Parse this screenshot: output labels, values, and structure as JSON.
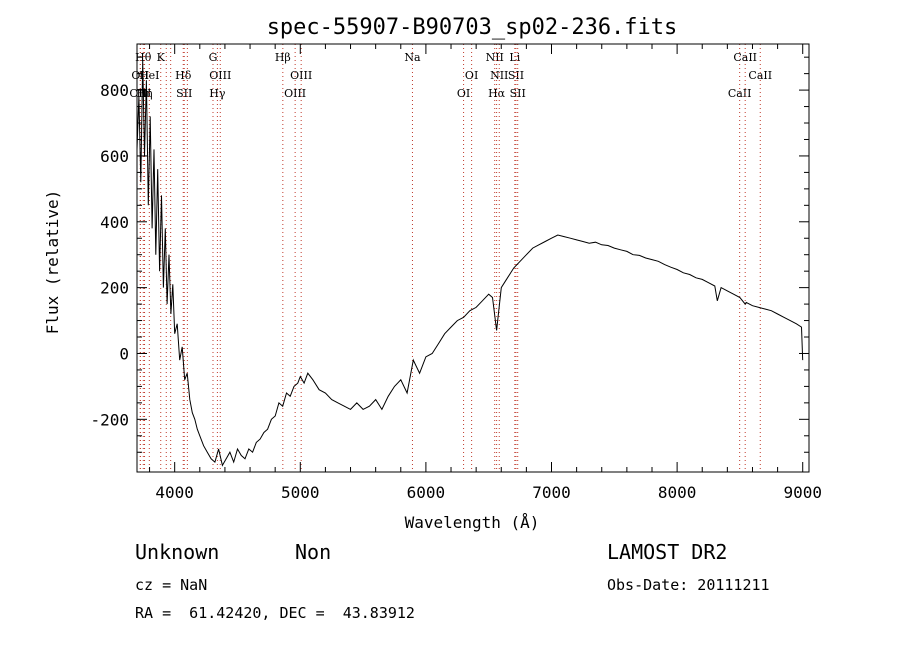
{
  "chart_data": {
    "type": "line",
    "title": "spec-55907-B90703_sp02-236.fits",
    "xlabel": "Wavelength (Å)",
    "ylabel": "Flux (relative)",
    "xlim": [
      3700,
      9050
    ],
    "ylim": [
      -360,
      940
    ],
    "xticks": [
      4000,
      5000,
      6000,
      7000,
      8000,
      9000
    ],
    "yticks": [
      -200,
      0,
      200,
      400,
      600,
      800
    ],
    "grid": false,
    "series": [
      {
        "x": [
          3700,
          3715,
          3730,
          3745,
          3760,
          3775,
          3790,
          3805,
          3820,
          3835,
          3850,
          3865,
          3880,
          3895,
          3910,
          3925,
          3940,
          3955,
          3970,
          3985,
          4000,
          4020,
          4040,
          4060,
          4080,
          4100,
          4120,
          4140,
          4160,
          4180,
          4200,
          4230,
          4260,
          4290,
          4320,
          4350,
          4380,
          4410,
          4440,
          4470,
          4500,
          4530,
          4560,
          4590,
          4620,
          4650,
          4680,
          4710,
          4740,
          4770,
          4800,
          4830,
          4860,
          4890,
          4920,
          4950,
          4980,
          5000,
          5030,
          5060,
          5100,
          5150,
          5200,
          5250,
          5300,
          5350,
          5400,
          5450,
          5500,
          5550,
          5600,
          5650,
          5700,
          5750,
          5800,
          5850,
          5900,
          5950,
          6000,
          6050,
          6100,
          6150,
          6200,
          6250,
          6300,
          6350,
          6400,
          6450,
          6500,
          6530,
          6563,
          6600,
          6650,
          6700,
          6750,
          6800,
          6850,
          6900,
          6950,
          7000,
          7050,
          7100,
          7150,
          7200,
          7250,
          7300,
          7350,
          7400,
          7450,
          7500,
          7550,
          7600,
          7650,
          7700,
          7750,
          7800,
          7850,
          7900,
          7950,
          8000,
          8050,
          8100,
          8150,
          8200,
          8250,
          8300,
          8320,
          8350,
          8400,
          8450,
          8500,
          8542,
          8550,
          8600,
          8650,
          8700,
          8750,
          8800,
          8850,
          8900,
          8950,
          8990,
          9000
        ],
        "y": [
          620,
          780,
          520,
          890,
          600,
          830,
          450,
          720,
          380,
          620,
          300,
          560,
          250,
          480,
          200,
          380,
          150,
          300,
          120,
          210,
          60,
          90,
          -20,
          20,
          -80,
          -60,
          -140,
          -180,
          -200,
          -230,
          -250,
          -280,
          -300,
          -320,
          -330,
          -290,
          -340,
          -320,
          -300,
          -330,
          -290,
          -310,
          -320,
          -290,
          -300,
          -270,
          -260,
          -240,
          -230,
          -200,
          -190,
          -150,
          -160,
          -120,
          -130,
          -100,
          -90,
          -70,
          -90,
          -60,
          -80,
          -110,
          -120,
          -140,
          -150,
          -160,
          -170,
          -150,
          -170,
          -160,
          -140,
          -170,
          -130,
          -100,
          -80,
          -120,
          -20,
          -60,
          -10,
          0,
          30,
          60,
          80,
          100,
          110,
          130,
          140,
          160,
          180,
          170,
          70,
          200,
          230,
          260,
          280,
          300,
          320,
          330,
          340,
          350,
          360,
          355,
          350,
          345,
          340,
          335,
          338,
          330,
          328,
          320,
          315,
          310,
          300,
          298,
          290,
          285,
          280,
          270,
          262,
          255,
          245,
          240,
          230,
          225,
          215,
          205,
          160,
          200,
          190,
          180,
          170,
          150,
          155,
          145,
          140,
          135,
          130,
          120,
          110,
          100,
          90,
          80,
          -20
        ]
      }
    ],
    "lines": [
      {
        "wl": 3726,
        "labels": [
          "OII"
        ],
        "row": 1
      },
      {
        "wl": 3750,
        "labels": [
          "Hθ"
        ],
        "row": 0
      },
      {
        "wl": 3760,
        "labels": [
          "Hη"
        ],
        "row": 2
      },
      {
        "wl": 3727,
        "labels": [
          "OIII"
        ],
        "row": 2
      },
      {
        "wl": 3798,
        "labels": [
          "HeI"
        ],
        "row": 1
      },
      {
        "wl": 3889,
        "labels": [
          "K"
        ],
        "row": 0
      },
      {
        "wl": 3933,
        "labels": [],
        "row": 0
      },
      {
        "wl": 3968,
        "labels": [],
        "row": 0
      },
      {
        "wl": 4068,
        "labels": [
          "Hδ"
        ],
        "row": 1
      },
      {
        "wl": 4076,
        "labels": [
          "SII"
        ],
        "row": 2
      },
      {
        "wl": 4101,
        "labels": [],
        "row": 0
      },
      {
        "wl": 4305,
        "labels": [
          "G"
        ],
        "row": 0
      },
      {
        "wl": 4340,
        "labels": [
          "Hγ"
        ],
        "row": 2
      },
      {
        "wl": 4363,
        "labels": [
          "OIII"
        ],
        "row": 1
      },
      {
        "wl": 4861,
        "labels": [
          "Hβ"
        ],
        "row": 0
      },
      {
        "wl": 4959,
        "labels": [
          "OIII"
        ],
        "row": 2
      },
      {
        "wl": 5007,
        "labels": [
          "OIII"
        ],
        "row": 1
      },
      {
        "wl": 5893,
        "labels": [
          "Na"
        ],
        "row": 0
      },
      {
        "wl": 6300,
        "labels": [
          "OI"
        ],
        "row": 2
      },
      {
        "wl": 6364,
        "labels": [
          "OI"
        ],
        "row": 1
      },
      {
        "wl": 6548,
        "labels": [
          "NII"
        ],
        "row": 0
      },
      {
        "wl": 6563,
        "labels": [
          "Hα"
        ],
        "row": 2
      },
      {
        "wl": 6584,
        "labels": [
          "NII"
        ],
        "row": 1
      },
      {
        "wl": 6708,
        "labels": [
          "Li"
        ],
        "row": 0
      },
      {
        "wl": 6717,
        "labels": [
          "SII"
        ],
        "row": 1
      },
      {
        "wl": 6731,
        "labels": [
          "SII"
        ],
        "row": 2
      },
      {
        "wl": 8498,
        "labels": [
          "CaII"
        ],
        "row": 2
      },
      {
        "wl": 8542,
        "labels": [
          "CaII"
        ],
        "row": 0
      },
      {
        "wl": 8662,
        "labels": [
          "CaII"
        ],
        "row": 1
      }
    ]
  },
  "info": {
    "class": "Unknown",
    "subclass": "Non",
    "survey": "LAMOST DR2",
    "cz": "cz = NaN",
    "obs_date": "Obs-Date: 20111211",
    "coords": "RA =  61.42420, DEC =  43.83912"
  },
  "colors": {
    "line_marker": "#c0392b",
    "spectrum": "#000000"
  }
}
